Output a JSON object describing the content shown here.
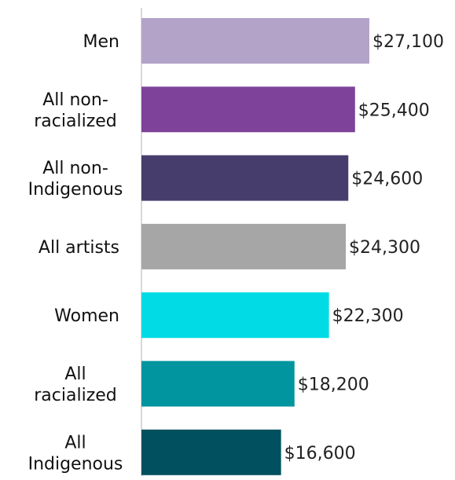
{
  "chart_data": {
    "type": "bar",
    "orientation": "horizontal",
    "categories": [
      [
        "Men"
      ],
      [
        "All non-",
        "racialized"
      ],
      [
        "All non-",
        "Indigenous"
      ],
      [
        "All artists"
      ],
      [
        "Women"
      ],
      [
        "All",
        "racialized"
      ],
      [
        "All",
        "Indigenous"
      ]
    ],
    "values": [
      27100,
      25400,
      24600,
      24300,
      22300,
      18200,
      16600
    ],
    "value_labels": [
      "$27,100",
      "$25,400",
      "$24,600",
      "$24,300",
      "$22,300",
      "$18,200",
      "$16,600"
    ],
    "colors": [
      "#b3a3c9",
      "#7e429a",
      "#473d6d",
      "#a6a6a6",
      "#00dbe6",
      "#00959f",
      "#00505f"
    ],
    "axis_color": "#d9d9d9",
    "xlim": [
      0,
      30000
    ],
    "grid": false,
    "legend": "none"
  }
}
